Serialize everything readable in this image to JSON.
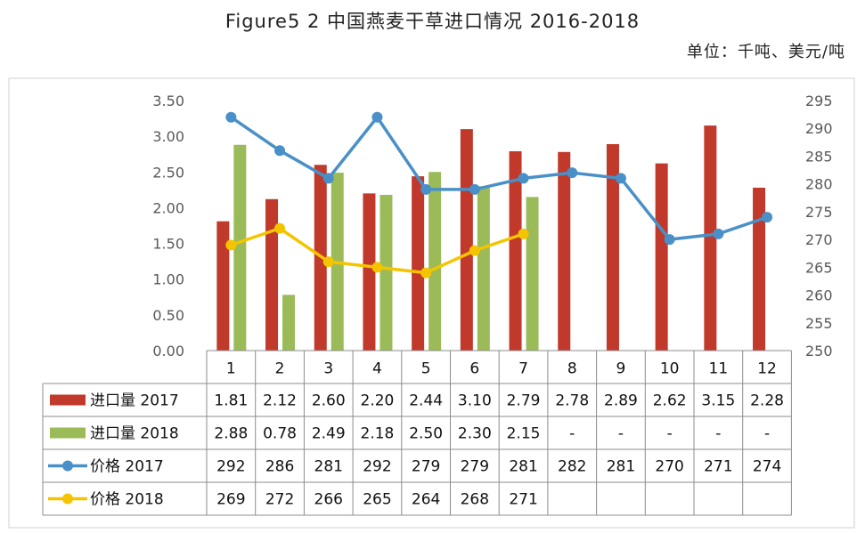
{
  "title": "Figure5 2 中国燕麦干草进口情况 2016-2018",
  "unit": "单位：千吨、美元/吨",
  "colors": {
    "import_2017": "#C0392B",
    "import_2018": "#9BBB59",
    "price_2017": "#4A90C8",
    "price_2018": "#F5C400"
  },
  "chart_data": {
    "type": "bar",
    "categories": [
      "1",
      "2",
      "3",
      "4",
      "5",
      "6",
      "7",
      "8",
      "9",
      "10",
      "11",
      "12"
    ],
    "series": [
      {
        "name": "进口量 2017",
        "type": "bar",
        "axis": "left",
        "values": [
          1.81,
          2.12,
          2.6,
          2.2,
          2.44,
          3.1,
          2.79,
          2.78,
          2.89,
          2.62,
          3.15,
          2.28
        ],
        "labels": [
          "1.81",
          "2.12",
          "2.60",
          "2.20",
          "2.44",
          "3.10",
          "2.79",
          "2.78",
          "2.89",
          "2.62",
          "3.15",
          "2.28"
        ]
      },
      {
        "name": "进口量 2018",
        "type": "bar",
        "axis": "left",
        "values": [
          2.88,
          0.78,
          2.49,
          2.18,
          2.5,
          2.3,
          2.15,
          null,
          null,
          null,
          null,
          null
        ],
        "labels": [
          "2.88",
          "0.78",
          "2.49",
          "2.18",
          "2.50",
          "2.30",
          "2.15",
          "-",
          "-",
          "-",
          "-",
          "-"
        ]
      },
      {
        "name": "价格 2017",
        "type": "line",
        "axis": "right",
        "values": [
          292,
          286,
          281,
          292,
          279,
          279,
          281,
          282,
          281,
          270,
          271,
          274
        ],
        "labels": [
          "292",
          "286",
          "281",
          "292",
          "279",
          "279",
          "281",
          "282",
          "281",
          "270",
          "271",
          "274"
        ]
      },
      {
        "name": "价格 2018",
        "type": "line",
        "axis": "right",
        "values": [
          269,
          272,
          266,
          265,
          264,
          268,
          271,
          null,
          null,
          null,
          null,
          null
        ],
        "labels": [
          "269",
          "272",
          "266",
          "265",
          "264",
          "268",
          "271",
          "",
          "",
          "",
          "",
          ""
        ]
      }
    ],
    "y_left": {
      "min": 0,
      "max": 3.5,
      "step": 0.5,
      "ticks": [
        "0.00",
        "0.50",
        "1.00",
        "1.50",
        "2.00",
        "2.50",
        "3.00",
        "3.50"
      ]
    },
    "y_right": {
      "min": 250,
      "max": 295,
      "step": 5,
      "ticks": [
        "250",
        "255",
        "260",
        "265",
        "270",
        "275",
        "280",
        "285",
        "290",
        "295"
      ]
    },
    "grid": false,
    "legend": "data-table"
  }
}
